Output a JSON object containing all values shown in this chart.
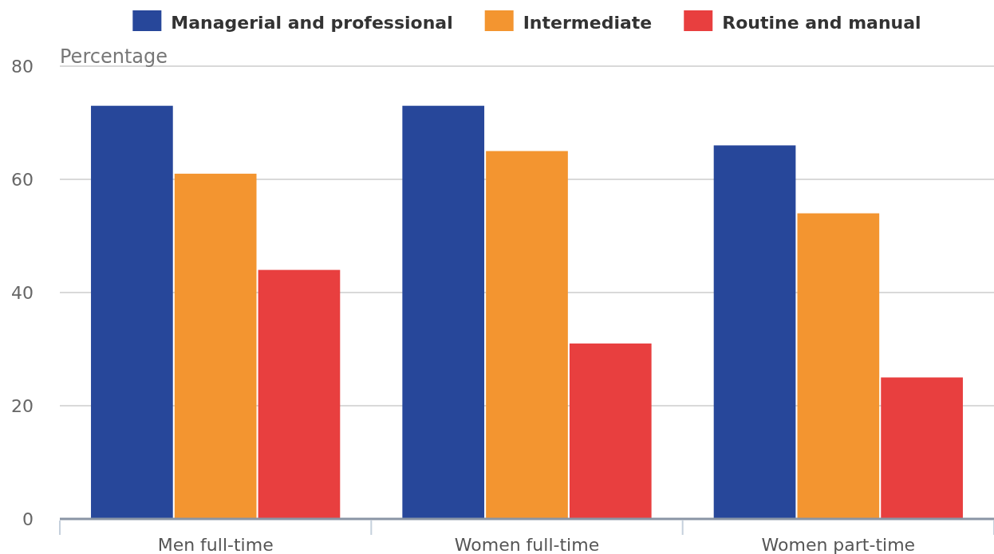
{
  "chart_data": {
    "type": "bar",
    "ylabel": "Percentage",
    "categories": [
      "Men full-time",
      "Women full-time",
      "Women part-time"
    ],
    "series": [
      {
        "name": "Managerial and professional",
        "color": "#27479a",
        "values": [
          73,
          73,
          66
        ]
      },
      {
        "name": "Intermediate",
        "color": "#f39530",
        "values": [
          61,
          65,
          54
        ]
      },
      {
        "name": "Routine and manual",
        "color": "#e83f3f",
        "values": [
          44,
          31,
          25
        ]
      }
    ],
    "ylim": [
      0,
      80
    ],
    "yticks": [
      0,
      20,
      40,
      60,
      80
    ],
    "grid": "y",
    "legend": "top"
  }
}
